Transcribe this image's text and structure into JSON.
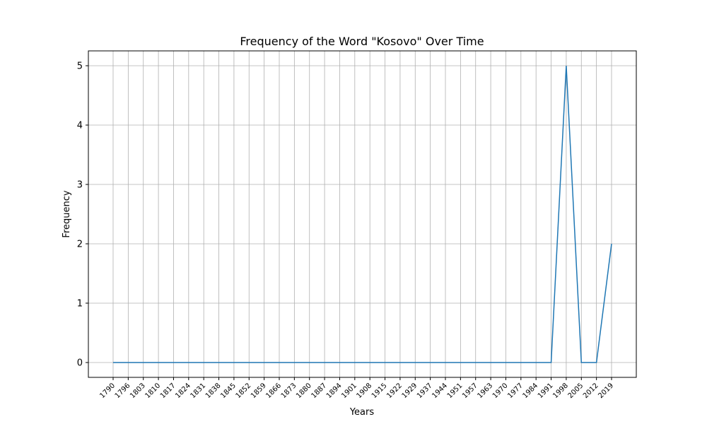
{
  "chart_data": {
    "type": "line",
    "title": "Frequency of the Word \"Kosovo\" Over Time",
    "xlabel": "Years",
    "ylabel": "Frequency",
    "grid": true,
    "x": [
      "1790",
      "1796",
      "1803",
      "1810",
      "1817",
      "1824",
      "1831",
      "1838",
      "1845",
      "1852",
      "1859",
      "1866",
      "1873",
      "1880",
      "1887",
      "1894",
      "1901",
      "1908",
      "1915",
      "1922",
      "1929",
      "1937",
      "1944",
      "1951",
      "1957",
      "1963",
      "1970",
      "1977",
      "1984",
      "1991",
      "1998",
      "2005",
      "2012",
      "2019"
    ],
    "values": [
      0,
      0,
      0,
      0,
      0,
      0,
      0,
      0,
      0,
      0,
      0,
      0,
      0,
      0,
      0,
      0,
      0,
      0,
      0,
      0,
      0,
      0,
      0,
      0,
      0,
      0,
      0,
      0,
      0,
      0,
      5,
      0,
      0,
      2
    ],
    "ylim": [
      -0.25,
      5.25
    ],
    "yticks": [
      "0",
      "1",
      "2",
      "3",
      "4",
      "5"
    ],
    "line_color": "#1f77b4",
    "grid_color": "#b0b0b0"
  }
}
